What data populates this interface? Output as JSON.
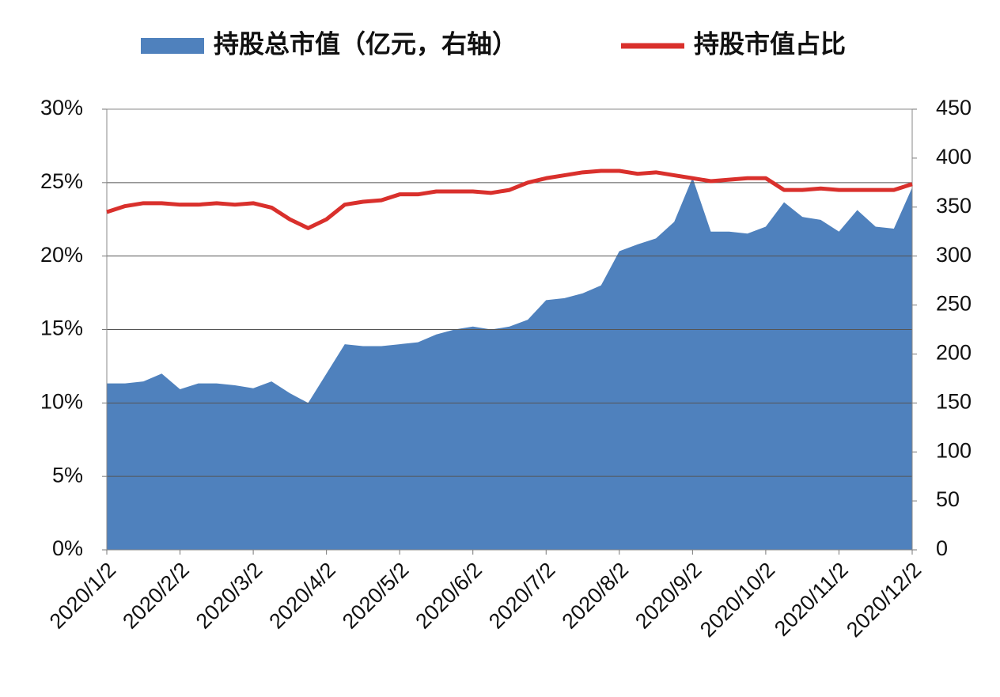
{
  "chart_data": {
    "type": "area-line",
    "legend": "top",
    "grid": true,
    "categories": [
      "2020/1/2",
      null,
      null,
      null,
      "2020/2/2",
      null,
      null,
      null,
      "2020/3/2",
      null,
      null,
      null,
      "2020/4/2",
      null,
      null,
      null,
      "2020/5/2",
      null,
      null,
      null,
      "2020/6/2",
      null,
      null,
      null,
      "2020/7/2",
      null,
      null,
      null,
      "2020/8/2",
      null,
      null,
      null,
      "2020/9/2",
      null,
      null,
      null,
      "2020/10/2",
      null,
      null,
      null,
      "2020/11/2",
      null,
      null,
      null,
      "2020/12/2"
    ],
    "series": [
      {
        "name": "持股总市值（亿元，右轴）",
        "type": "area",
        "axis": "y2",
        "color": "#4f81bd",
        "values": [
          170,
          170,
          172,
          180,
          164,
          170,
          170,
          168,
          165,
          172,
          160,
          150,
          180,
          210,
          208,
          208,
          210,
          212,
          220,
          225,
          228,
          225,
          228,
          235,
          255,
          257,
          262,
          270,
          305,
          312,
          318,
          335,
          380,
          325,
          325,
          323,
          330,
          355,
          340,
          337,
          325,
          347,
          330,
          328,
          370
        ]
      },
      {
        "name": "持股市值占比",
        "type": "line",
        "axis": "y",
        "color": "#d9302c",
        "values": [
          23.0,
          23.4,
          23.6,
          23.6,
          23.5,
          23.5,
          23.6,
          23.5,
          23.6,
          23.3,
          22.5,
          21.9,
          22.5,
          23.5,
          23.7,
          23.8,
          24.2,
          24.2,
          24.4,
          24.4,
          24.4,
          24.3,
          24.5,
          25.0,
          25.3,
          25.5,
          25.7,
          25.8,
          25.8,
          25.6,
          25.7,
          25.5,
          25.3,
          25.1,
          25.2,
          25.3,
          25.3,
          24.5,
          24.5,
          24.6,
          24.5,
          24.5,
          24.5,
          24.5,
          24.9
        ]
      }
    ],
    "ylim": [
      0,
      30
    ],
    "yticks": [
      {
        "value": 0,
        "label": "0%"
      },
      {
        "value": 5,
        "label": "5%"
      },
      {
        "value": 10,
        "label": "10%"
      },
      {
        "value": 15,
        "label": "15%"
      },
      {
        "value": 20,
        "label": "20%"
      },
      {
        "value": 25,
        "label": "25%"
      },
      {
        "value": 30,
        "label": "30%"
      }
    ],
    "y2lim": [
      0,
      450
    ],
    "y2ticks": [
      0,
      50,
      100,
      150,
      200,
      250,
      300,
      350,
      400,
      450
    ]
  }
}
